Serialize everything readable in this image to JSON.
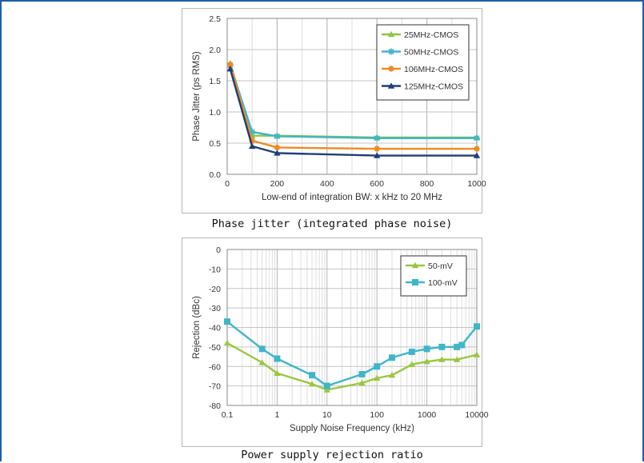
{
  "captions": {
    "top": "Phase jitter (integrated phase noise)",
    "bottom": "Power supply rejection ratio"
  },
  "chart_data": [
    {
      "type": "line",
      "title": "",
      "xlabel": "Low-end of integration BW: x kHz to 20 MHz",
      "ylabel": "Phase Jitter (ps RMS)",
      "xlim": [
        0,
        1000
      ],
      "ylim": [
        0,
        2.5
      ],
      "x_ticks": [
        "0",
        "200",
        "400",
        "600",
        "800",
        "1000"
      ],
      "y_ticks": [
        "0.0",
        "0.5",
        "1.0",
        "1.5",
        "2.0",
        "2.5"
      ],
      "grid": true,
      "legend_position": "top-right",
      "series": [
        {
          "name": "25MHz-CMOS",
          "color": "#8dc63f",
          "marker": "triangle",
          "x": [
            12,
            100,
            200,
            600,
            1000
          ],
          "y": [
            1.78,
            0.62,
            0.62,
            0.59,
            0.59
          ]
        },
        {
          "name": "50MHz-CMOS",
          "color": "#3fb6c8",
          "marker": "star",
          "x": [
            12,
            100,
            200,
            600,
            1000
          ],
          "y": [
            1.75,
            0.68,
            0.61,
            0.58,
            0.58
          ]
        },
        {
          "name": "106MHz-CMOS",
          "color": "#f08a24",
          "marker": "circle",
          "x": [
            12,
            100,
            200,
            600,
            1000
          ],
          "y": [
            1.76,
            0.54,
            0.43,
            0.41,
            0.41
          ]
        },
        {
          "name": "125MHz-CMOS",
          "color": "#1f3d7a",
          "marker": "triangle",
          "x": [
            12,
            100,
            200,
            600,
            1000
          ],
          "y": [
            1.69,
            0.45,
            0.34,
            0.3,
            0.3
          ]
        }
      ]
    },
    {
      "type": "line",
      "title": "",
      "xlabel": "Supply Noise Frequency (kHz)",
      "ylabel": "Rejection (dBc)",
      "xscale": "log",
      "xlim": [
        0.1,
        10000
      ],
      "ylim": [
        -80,
        0
      ],
      "x_ticks": [
        "0.1",
        "1",
        "10",
        "100",
        "1000",
        "10000"
      ],
      "y_ticks": [
        "0",
        "-10",
        "-20",
        "-30",
        "-40",
        "-50",
        "-60",
        "-70",
        "-80"
      ],
      "grid": true,
      "legend_position": "top-right",
      "series": [
        {
          "name": "50-mV",
          "color": "#9bc63f",
          "marker": "triangle",
          "x": [
            0.1,
            0.5,
            1,
            5,
            10,
            50,
            100,
            200,
            500,
            1000,
            2000,
            4000,
            10000
          ],
          "y": [
            -48,
            -58,
            -63.5,
            -69,
            -72,
            -68.5,
            -66,
            -64.5,
            -59,
            -57.5,
            -56.5,
            -56.5,
            -54
          ]
        },
        {
          "name": "100-mV",
          "color": "#3fb6c8",
          "marker": "square",
          "x": [
            0.1,
            0.5,
            1,
            5,
            10,
            50,
            100,
            200,
            500,
            1000,
            2000,
            4000,
            5000,
            10000
          ],
          "y": [
            -37,
            -51,
            -56,
            -64.5,
            -70,
            -64,
            -60,
            -55.5,
            -52.5,
            -51,
            -50,
            -50,
            -49,
            -39.5
          ]
        }
      ]
    }
  ]
}
